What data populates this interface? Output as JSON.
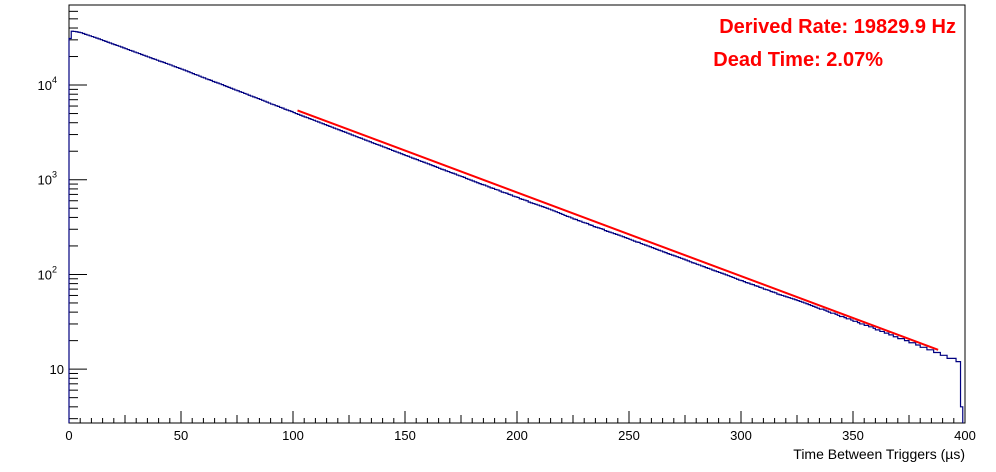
{
  "chart_data": {
    "type": "line",
    "title": "",
    "xlabel": "Time Between Triggers (µs)",
    "ylabel": "",
    "xlim": [
      0,
      400
    ],
    "ylim": [
      2.7,
      70000
    ],
    "y_scale": "log",
    "grid": false,
    "x_ticks": [
      {
        "value": 0,
        "label": "0"
      },
      {
        "value": 50,
        "label": "50"
      },
      {
        "value": 100,
        "label": "100"
      },
      {
        "value": 150,
        "label": "150"
      },
      {
        "value": 200,
        "label": "200"
      },
      {
        "value": 250,
        "label": "250"
      },
      {
        "value": 300,
        "label": "300"
      },
      {
        "value": 350,
        "label": "350"
      },
      {
        "value": 400,
        "label": "400"
      }
    ],
    "y_ticks": [
      {
        "value": 10,
        "label": "10"
      },
      {
        "value": 100,
        "label": "10",
        "exp": "2"
      },
      {
        "value": 1000,
        "label": "10",
        "exp": "3"
      },
      {
        "value": 10000,
        "label": "10",
        "exp": "4"
      }
    ],
    "series": [
      {
        "style": "histogram",
        "color": "#000080",
        "bins": {
          "x_start": 0,
          "bin_width": 1
        },
        "values": [
          31000,
          37000,
          36800,
          36500,
          36100,
          35700,
          35000,
          34300,
          33700,
          33100,
          32500,
          31900,
          31300,
          30700,
          30100,
          29500,
          28900,
          28300,
          27800,
          27200,
          26700,
          26200,
          25700,
          25200,
          24700,
          24200,
          23700,
          23200,
          22800,
          22300,
          21900,
          21500,
          21000,
          20600,
          20200,
          19800,
          19400,
          19000,
          18700,
          18300,
          17900,
          17600,
          17300,
          16900,
          16600,
          16300,
          15900,
          15600,
          15300,
          15000,
          14700,
          14400,
          14100,
          13800,
          13500,
          13200,
          12900,
          12700,
          12400,
          12100,
          11900,
          11600,
          11400,
          11200,
          10900,
          10700,
          10500,
          10300,
          10100,
          9850,
          9650,
          9450,
          9250,
          9050,
          8850,
          8700,
          8500,
          8350,
          8150,
          8000,
          7800,
          7650,
          7500,
          7350,
          7200,
          7050,
          6900,
          6750,
          6600,
          6450,
          6300,
          6200,
          6050,
          5950,
          5800,
          5700,
          5550,
          5450,
          5350,
          5250,
          5120,
          5000,
          4900,
          4800,
          4700,
          4600,
          4520,
          4420,
          4330,
          4240,
          4150,
          4070,
          3980,
          3900,
          3820,
          3740,
          3660,
          3590,
          3510,
          3440,
          3370,
          3300,
          3230,
          3170,
          3100,
          3040,
          2970,
          2910,
          2850,
          2790,
          2740,
          2680,
          2620,
          2570,
          2520,
          2460,
          2410,
          2360,
          2320,
          2270,
          2220,
          2180,
          2130,
          2090,
          2040,
          2000,
          1960,
          1920,
          1880,
          1840,
          1800,
          1770,
          1730,
          1690,
          1660,
          1630,
          1590,
          1560,
          1530,
          1500,
          1470,
          1440,
          1410,
          1380,
          1350,
          1320,
          1290,
          1270,
          1240,
          1220,
          1190,
          1170,
          1150,
          1120,
          1100,
          1080,
          1060,
          1030,
          1010,
          990,
          970,
          950,
          930,
          910,
          890,
          880,
          860,
          840,
          820,
          810,
          790,
          780,
          760,
          740,
          730,
          720,
          700,
          690,
          670,
          660,
          650,
          630,
          620,
          610,
          600,
          580,
          570,
          560,
          550,
          540,
          530,
          520,
          510,
          500,
          490,
          480,
          470,
          460,
          450,
          440,
          430,
          420,
          410,
          405,
          395,
          385,
          380,
          370,
          365,
          355,
          350,
          345,
          335,
          330,
          320,
          315,
          310,
          305,
          300,
          290,
          285,
          280,
          275,
          270,
          265,
          260,
          255,
          250,
          245,
          240,
          235,
          230,
          225,
          220,
          218,
          212,
          208,
          204,
          200,
          196,
          192,
          188,
          184,
          180,
          177,
          173,
          170,
          166,
          163,
          160,
          157,
          154,
          151,
          148,
          145,
          142,
          139,
          136,
          133,
          131,
          128,
          126,
          123,
          121,
          118,
          116,
          114,
          111,
          109,
          107,
          105,
          103,
          101,
          99,
          97,
          95,
          93,
          91,
          89,
          87,
          86,
          84,
          82,
          81,
          79,
          78,
          76,
          75,
          73,
          72,
          70,
          69,
          68,
          66,
          65,
          64,
          62,
          61,
          60,
          59,
          58,
          57,
          56,
          55,
          54,
          53,
          52,
          51,
          50,
          49,
          48,
          47,
          46,
          45,
          44,
          43,
          43,
          42,
          41,
          40,
          39,
          39,
          38,
          37,
          36,
          36,
          35,
          34,
          34,
          33,
          32,
          32,
          31,
          30,
          30,
          29,
          29,
          28,
          28,
          27,
          26,
          26,
          25,
          25,
          24,
          24,
          23,
          23,
          22,
          22,
          21,
          21,
          21,
          20,
          20,
          19,
          19,
          19,
          18,
          18,
          17,
          17,
          17,
          16,
          16,
          16,
          15,
          15,
          15,
          14,
          14,
          14,
          13,
          13,
          13,
          13,
          12,
          12,
          4
        ]
      },
      {
        "style": "line",
        "color": "#ff0000",
        "name": "",
        "x": [
          102,
          388
        ],
        "y": [
          5400,
          16
        ]
      }
    ],
    "annotations": [
      {
        "text": "Derived Rate: 19829.9 Hz",
        "color": "#ff0000",
        "position": "top-right"
      },
      {
        "text": "Dead Time: 2.07%",
        "color": "#ff0000",
        "position": "top-right"
      }
    ]
  }
}
